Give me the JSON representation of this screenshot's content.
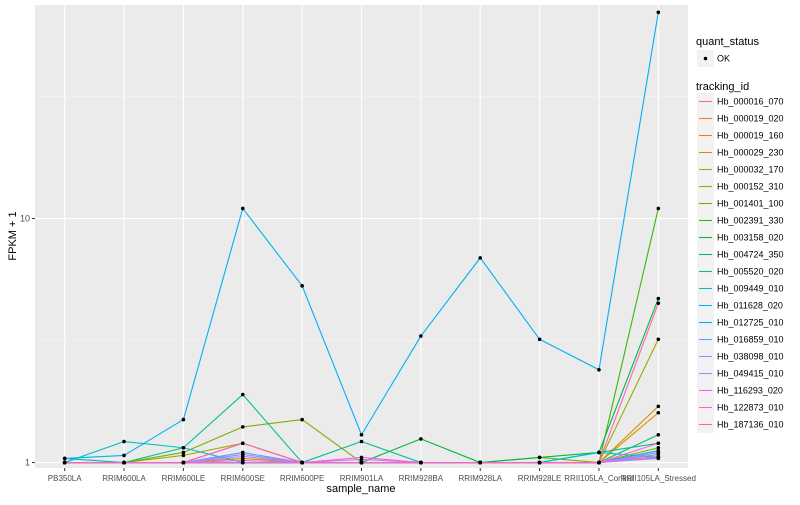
{
  "chart_data": {
    "type": "line",
    "title": "",
    "xlabel": "sample_name",
    "ylabel": "FPKM + 1",
    "y_scale": "log10",
    "ylim": [
      0.95,
      75
    ],
    "yticks": [
      1,
      10
    ],
    "ytick_labels": [
      "1",
      "10"
    ],
    "grid": true,
    "legend_position": "right",
    "categories": [
      "PB350LA",
      "RRIM600LA",
      "RRIM600LE",
      "RRIM600SE",
      "RRIM600PE",
      "RRIM901LA",
      "RRIM928BA",
      "RRIM928LA",
      "RRIM928LE",
      "RRII105LA_Control",
      "RRII105LA_Stressed"
    ],
    "quant_status_legend": {
      "title": "quant_status",
      "items": [
        "OK"
      ]
    },
    "tracking_legend_title": "tracking_id",
    "series": [
      {
        "name": "Hb_000016_070",
        "color": "#F8766D",
        "values": [
          1,
          1,
          1,
          1.2,
          1,
          1,
          1,
          1,
          1,
          1,
          1.05
        ]
      },
      {
        "name": "Hb_000019_020",
        "color": "#EE8043",
        "values": [
          1,
          1,
          1,
          1,
          1,
          1,
          1,
          1,
          1,
          1,
          1.06
        ]
      },
      {
        "name": "Hb_000019_160",
        "color": "#E08B00",
        "values": [
          1,
          1,
          1,
          1,
          1,
          1,
          1,
          1,
          1,
          1,
          1.6
        ]
      },
      {
        "name": "Hb_000029_230",
        "color": "#CF9400",
        "values": [
          1,
          1,
          1,
          1,
          1,
          1,
          1,
          1,
          1,
          1,
          1.7
        ]
      },
      {
        "name": "Hb_000032_170",
        "color": "#B79F00",
        "values": [
          1,
          1,
          1,
          1.04,
          1,
          1,
          1,
          1,
          1,
          1,
          1.1
        ]
      },
      {
        "name": "Hb_000152_310",
        "color": "#9CA700",
        "values": [
          1,
          1,
          1.07,
          1.2,
          1,
          1,
          1,
          1,
          1,
          1,
          3.2
        ]
      },
      {
        "name": "Hb_001401_100",
        "color": "#7CAE00",
        "values": [
          1,
          1,
          1.1,
          1.4,
          1.5,
          1,
          1,
          1,
          1.05,
          1,
          1.15
        ]
      },
      {
        "name": "Hb_002391_330",
        "color": "#3DB600",
        "values": [
          1,
          1,
          1,
          1,
          1,
          1,
          1,
          1,
          1,
          1,
          11
        ]
      },
      {
        "name": "Hb_003158_020",
        "color": "#00BA38",
        "values": [
          1,
          1,
          1,
          1,
          1,
          1,
          1.25,
          1,
          1.05,
          1.1,
          4.7
        ]
      },
      {
        "name": "Hb_004724_350",
        "color": "#00BE67",
        "values": [
          1,
          1,
          1,
          1,
          1,
          1,
          1,
          1,
          1,
          1,
          1.3
        ]
      },
      {
        "name": "Hb_005520_020",
        "color": "#00BF96",
        "values": [
          1.04,
          1,
          1.15,
          1.9,
          1,
          1.22,
          1,
          1,
          1,
          1.1,
          1.2
        ]
      },
      {
        "name": "Hb_009449_010",
        "color": "#00BFC4",
        "values": [
          1,
          1.22,
          1.15,
          1,
          1,
          1,
          1,
          1,
          1,
          1.1,
          1.05
        ]
      },
      {
        "name": "Hb_011628_020",
        "color": "#00B8E7",
        "values": [
          1,
          1,
          1,
          1,
          1,
          1,
          1,
          1,
          1,
          1,
          1.12
        ]
      },
      {
        "name": "Hb_012725_010",
        "color": "#00B0F6",
        "values": [
          1.04,
          1.07,
          1.5,
          11,
          5.3,
          1.3,
          3.3,
          6.9,
          3.2,
          2.4,
          70
        ]
      },
      {
        "name": "Hb_016859_010",
        "color": "#619CFF",
        "values": [
          1,
          1,
          1,
          1.1,
          1,
          1,
          1,
          1,
          1,
          1,
          1.08
        ]
      },
      {
        "name": "Hb_038098_010",
        "color": "#9590FF",
        "values": [
          1,
          1,
          1,
          1.08,
          1,
          1,
          1,
          1,
          1,
          1,
          1.04
        ]
      },
      {
        "name": "Hb_049415_010",
        "color": "#C77CFF",
        "values": [
          1,
          1,
          1,
          1.06,
          1,
          1.03,
          1,
          1,
          1,
          1,
          1.1
        ]
      },
      {
        "name": "Hb_116293_020",
        "color": "#E76BF3",
        "values": [
          1,
          1,
          1,
          1.02,
          1,
          1,
          1,
          1,
          1,
          1,
          1.05
        ]
      },
      {
        "name": "Hb_122873_010",
        "color": "#FA62DB",
        "values": [
          1,
          1,
          1,
          1,
          1,
          1.05,
          1,
          1,
          1,
          1,
          1.2
        ]
      },
      {
        "name": "Hb_187136_010",
        "color": "#FF62BC",
        "values": [
          1,
          1,
          1,
          1.2,
          1,
          1,
          1,
          1,
          1,
          1,
          4.5
        ]
      }
    ]
  }
}
